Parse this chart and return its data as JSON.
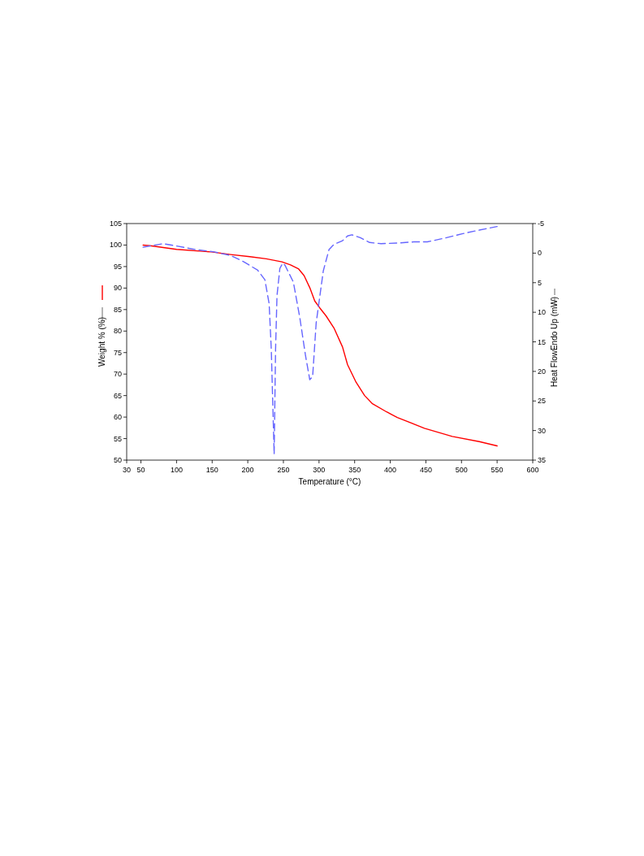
{
  "chart_data": {
    "type": "line",
    "xlabel": "Temperature (°C)",
    "ylabel": "Weight % (%)",
    "y2label": "Heat FlowEndo Up (mW)",
    "xlim": [
      30,
      600
    ],
    "xticks": [
      30,
      50,
      100,
      150,
      200,
      250,
      300,
      350,
      400,
      450,
      500,
      550,
      600
    ],
    "ylim": [
      50,
      105
    ],
    "yticks": [
      50,
      55,
      60,
      65,
      70,
      75,
      80,
      85,
      90,
      95,
      100,
      105
    ],
    "y2lim": [
      35,
      -5
    ],
    "y2ticks": [
      35,
      30,
      25,
      20,
      15,
      10,
      5,
      0,
      -5
    ],
    "grid": false,
    "marker": "none",
    "series": [
      {
        "color": "#ff0000",
        "line_style": "solid",
        "x": [
          53,
          65,
          100,
          149,
          176,
          203,
          226,
          248,
          260,
          271,
          279,
          287,
          294,
          301,
          310,
          321,
          333,
          340,
          352,
          364,
          375,
          395,
          410,
          448,
          487,
          525,
          550
        ],
        "values": [
          100,
          99.8,
          99,
          98.4,
          97.8,
          97.3,
          96.8,
          96.1,
          95.4,
          94.5,
          92.9,
          90.1,
          87,
          85.4,
          83.5,
          80.7,
          76.3,
          72.2,
          68.1,
          65,
          63.1,
          61.2,
          59.9,
          57.4,
          55.5,
          54.3,
          53.3
        ]
      },
      {
        "color": "#6666ff",
        "line_style": "dashed",
        "axis": "y2",
        "x": [
          53,
          81,
          100,
          127,
          153,
          176,
          195,
          214,
          224,
          230,
          233,
          237,
          239,
          241,
          245,
          249,
          252,
          264,
          273,
          281,
          287,
          291,
          296,
          306,
          314,
          321,
          333,
          340,
          346,
          358,
          371,
          387,
          410,
          433,
          452,
          475,
          502,
          525,
          550
        ],
        "values": [
          -1,
          -1.6,
          -1.2,
          -0.6,
          -0.2,
          0.4,
          1.5,
          2.9,
          4.5,
          8.6,
          16.3,
          34,
          16.3,
          7.2,
          2.6,
          1.7,
          2,
          4.9,
          10.9,
          17.3,
          21.4,
          20.9,
          11.8,
          3,
          -0.6,
          -1.5,
          -2.1,
          -2.9,
          -3.1,
          -2.6,
          -1.8,
          -1.6,
          -1.7,
          -1.9,
          -1.9,
          -2.5,
          -3.3,
          -3.9,
          -4.5
        ]
      }
    ]
  }
}
